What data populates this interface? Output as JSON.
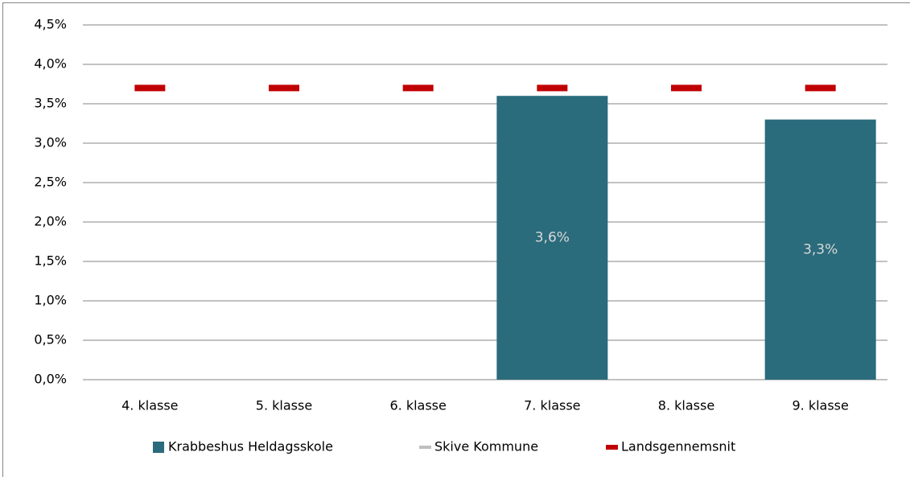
{
  "chart_data": {
    "type": "bar",
    "categories": [
      "4. klasse",
      "5. klasse",
      "6. klasse",
      "7. klasse",
      "8. klasse",
      "9. klasse"
    ],
    "series": [
      {
        "name": "Krabbeshus Heldagsskole",
        "color": "#2a6b7c",
        "kind": "bar",
        "values": [
          null,
          null,
          null,
          3.6,
          null,
          3.3
        ],
        "value_labels": [
          null,
          null,
          null,
          "3,6%",
          null,
          "3,3%"
        ]
      },
      {
        "name": "Skive Kommune",
        "color": "#bfbfbf",
        "kind": "dash",
        "values": [
          null,
          null,
          null,
          null,
          null,
          null
        ]
      },
      {
        "name": "Landsgennemsnit",
        "color": "#c00000",
        "kind": "dash",
        "values": [
          3.7,
          3.7,
          3.7,
          3.7,
          3.7,
          3.7
        ]
      }
    ],
    "ylim": [
      0,
      4.5
    ],
    "yticks": [
      {
        "value": 0,
        "label": "0,0%"
      },
      {
        "value": 0.5,
        "label": "0,5%"
      },
      {
        "value": 1,
        "label": "1,0%"
      },
      {
        "value": 1.5,
        "label": "1,5%"
      },
      {
        "value": 2,
        "label": "2,0%"
      },
      {
        "value": 2.5,
        "label": "2,5%"
      },
      {
        "value": 3,
        "label": "3,0%"
      },
      {
        "value": 3.5,
        "label": "3,5%"
      },
      {
        "value": 4,
        "label": "4,0%"
      },
      {
        "value": 4.5,
        "label": "4,5%"
      }
    ],
    "grid": true,
    "legend": "bottom"
  }
}
